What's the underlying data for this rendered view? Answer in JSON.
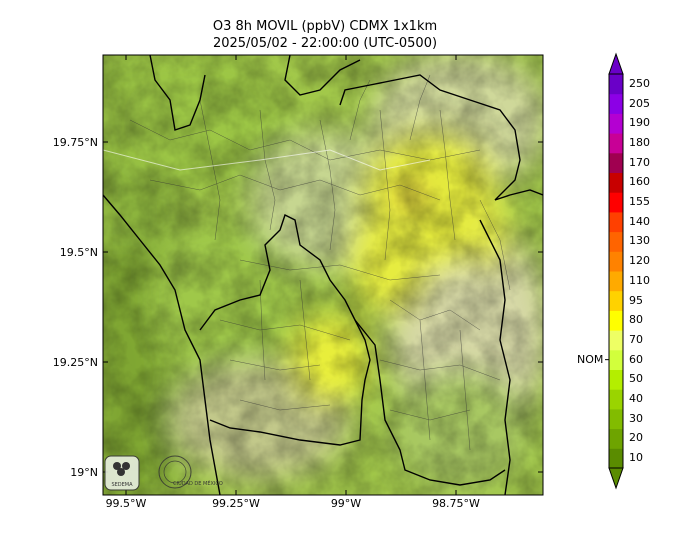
{
  "title": {
    "line1": "O3 8h MOVIL (ppbV) CDMX 1x1km",
    "line2": "2025/05/02 - 22:00:00 (UTC-0500)"
  },
  "map": {
    "lat_labels": [
      "19.75°N",
      "19.5°N",
      "19.25°N",
      "19°N"
    ],
    "lon_labels": [
      "99.5°W",
      "99.25°W",
      "99°W",
      "98.75°W"
    ],
    "logos": [
      {
        "name": "sedema-logo",
        "text": "SEDEMA"
      },
      {
        "name": "ciudad-de-mexico-logo",
        "text": "CIUDAD DE MÉXICO"
      }
    ]
  },
  "colorbar": {
    "levels": [
      "10",
      "20",
      "30",
      "40",
      "50",
      "60",
      "70",
      "80",
      "95",
      "110",
      "120",
      "130",
      "140",
      "155",
      "160",
      "170",
      "180",
      "190",
      "205",
      "250"
    ],
    "colors": [
      "#5a8c00",
      "#6ea400",
      "#82bc00",
      "#9ad400",
      "#b4ee00",
      "#d2ff3c",
      "#eeff64",
      "#ffff00",
      "#ffd200",
      "#ffaa00",
      "#ff8200",
      "#ff6400",
      "#ff4000",
      "#ff0000",
      "#c80000",
      "#a00050",
      "#c80096",
      "#b400d2",
      "#8c00e6",
      "#6a00c8"
    ],
    "nom_label": "NOM",
    "nom_value": 60
  }
}
